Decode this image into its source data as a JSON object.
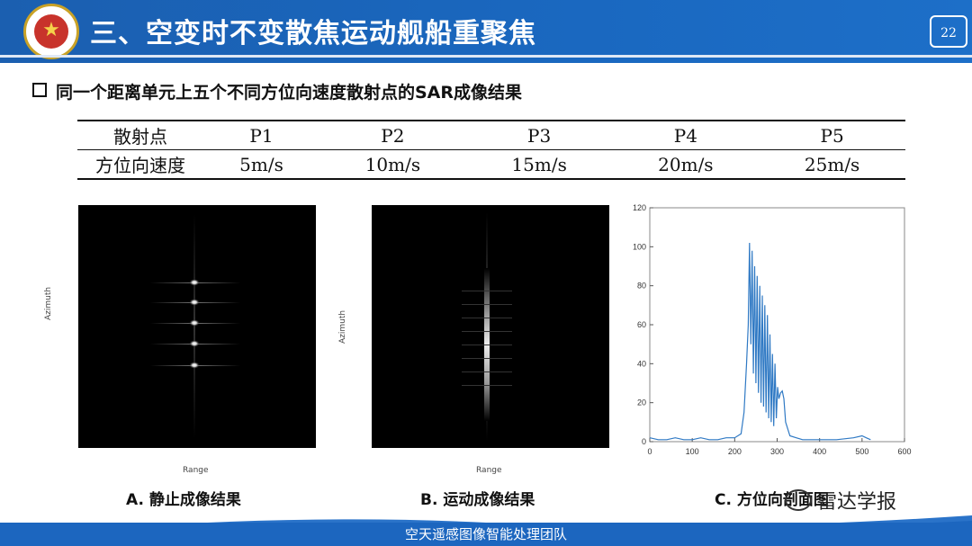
{
  "header": {
    "title": "三、空变时不变散焦运动舰船重聚焦",
    "page_number": "22"
  },
  "subtitle": "同一个距离单元上五个不同方位向速度散射点的SAR成像结果",
  "params_table": {
    "header_row": [
      "散射点",
      "P1",
      "P2",
      "P3",
      "P4",
      "P5"
    ],
    "value_row": [
      "方位向速度",
      "5m/s",
      "10m/s",
      "15m/s",
      "20m/s",
      "25m/s"
    ]
  },
  "panels": [
    {
      "xlabel": "Range",
      "ylabel": "Azimuth",
      "caption": "A. 静止成像结果"
    },
    {
      "xlabel": "Range",
      "ylabel": "Azimuth",
      "caption": "B. 运动成像结果"
    }
  ],
  "chart_data": {
    "type": "line",
    "title": "",
    "xlabel": "",
    "ylabel": "",
    "xlim": [
      0,
      600
    ],
    "ylim": [
      0,
      120
    ],
    "xticks": [
      0,
      100,
      200,
      300,
      400,
      500,
      600
    ],
    "yticks": [
      0,
      20,
      40,
      60,
      80,
      100,
      120
    ],
    "line_color": "#2f79c4",
    "x": [
      0,
      20,
      40,
      60,
      80,
      100,
      120,
      140,
      160,
      180,
      200,
      215,
      222,
      228,
      232,
      235,
      238,
      241,
      244,
      247,
      250,
      253,
      256,
      259,
      262,
      265,
      268,
      271,
      274,
      277,
      280,
      283,
      286,
      289,
      292,
      295,
      298,
      301,
      304,
      308,
      312,
      316,
      320,
      330,
      345,
      360,
      380,
      400,
      440,
      480,
      500,
      510,
      520
    ],
    "y": [
      2,
      1,
      1,
      2,
      1,
      1,
      2,
      1,
      1,
      2,
      2,
      4,
      15,
      40,
      60,
      102,
      50,
      98,
      35,
      90,
      30,
      85,
      25,
      80,
      20,
      75,
      18,
      70,
      15,
      65,
      12,
      55,
      10,
      45,
      8,
      40,
      12,
      28,
      22,
      25,
      26,
      22,
      10,
      3,
      2,
      1,
      1,
      1,
      1,
      2,
      3,
      2,
      1
    ],
    "caption": "C. 方位向剖面图"
  },
  "footer": {
    "text": "空天遥感图像智能处理团队"
  },
  "watermark": "雷达学报",
  "colors": {
    "header_blue": "#1b5fb0",
    "footer_blue": "#1c66bf",
    "line_blue": "#2f79c4"
  }
}
